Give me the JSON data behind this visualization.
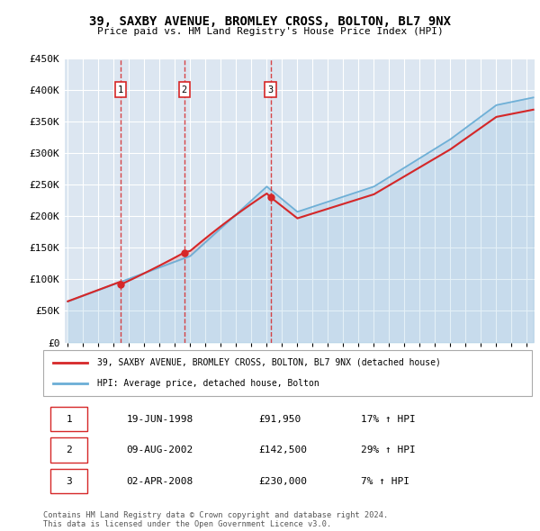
{
  "title_line1": "39, SAXBY AVENUE, BROMLEY CROSS, BOLTON, BL7 9NX",
  "title_line2": "Price paid vs. HM Land Registry's House Price Index (HPI)",
  "background_color": "#dce6f1",
  "plot_bg_color": "#dce6f1",
  "grid_color": "#ffffff",
  "sale_times": [
    1998.46,
    2002.61,
    2008.25
  ],
  "sale_prices": [
    91950,
    142500,
    230000
  ],
  "sale_labels": [
    "1",
    "2",
    "3"
  ],
  "sale_dates_display": [
    "19-JUN-1998",
    "09-AUG-2002",
    "02-APR-2008"
  ],
  "sale_prices_display": [
    "£91,950",
    "£142,500",
    "£230,000"
  ],
  "sale_pct_display": [
    "17% ↑ HPI",
    "29% ↑ HPI",
    "7% ↑ HPI"
  ],
  "legend_line1": "39, SAXBY AVENUE, BROMLEY CROSS, BOLTON, BL7 9NX (detached house)",
  "legend_line2": "HPI: Average price, detached house, Bolton",
  "footer_line1": "Contains HM Land Registry data © Crown copyright and database right 2024.",
  "footer_line2": "This data is licensed under the Open Government Licence v3.0.",
  "hpi_color": "#6baed6",
  "price_color": "#d62728",
  "vline_color": "#d62728",
  "ylim": [
    0,
    450000
  ],
  "xlim": [
    1994.8,
    2025.5
  ],
  "yticks": [
    0,
    50000,
    100000,
    150000,
    200000,
    250000,
    300000,
    350000,
    400000,
    450000
  ],
  "ytick_labels": [
    "£0",
    "£50K",
    "£100K",
    "£150K",
    "£200K",
    "£250K",
    "£300K",
    "£350K",
    "£400K",
    "£450K"
  ]
}
